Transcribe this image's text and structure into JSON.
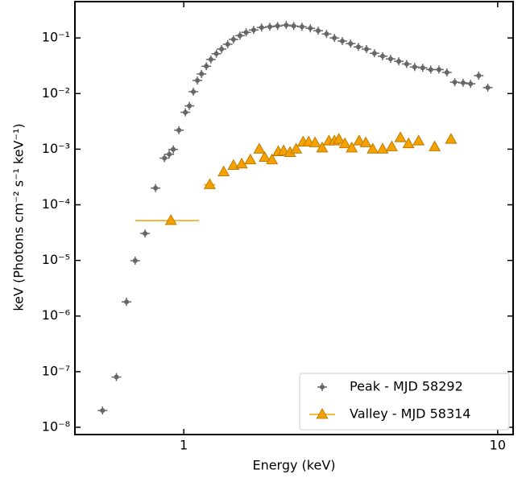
{
  "chart_data": {
    "type": "scatter",
    "xlabel": "Energy (keV)",
    "ylabel": "keV (Photons cm⁻² s⁻¹ keV⁻¹)",
    "log_x": true,
    "log_y": true,
    "xlim": [
      0.45,
      11.2
    ],
    "ylim": [
      7.4e-09,
      0.45
    ],
    "xticks": [
      1,
      10
    ],
    "yticks": [
      {
        "value": 1e-08,
        "label": "10⁻⁸"
      },
      {
        "value": 1e-07,
        "label": "10⁻⁷"
      },
      {
        "value": 1e-06,
        "label": "10⁻⁶"
      },
      {
        "value": 1e-05,
        "label": "10⁻⁵"
      },
      {
        "value": 0.0001,
        "label": "10⁻⁴"
      },
      {
        "value": 0.001,
        "label": "10⁻³"
      },
      {
        "value": 0.01,
        "label": "10⁻²"
      },
      {
        "value": 0.1,
        "label": "10⁻¹"
      }
    ],
    "legend": "lower right",
    "series": [
      {
        "name": "Peak - MJD 58292",
        "color": "#666666",
        "marker": "cross",
        "x": [
          0.551,
          0.61,
          0.657,
          0.7,
          0.753,
          0.813,
          0.868,
          0.899,
          0.926,
          0.965,
          1.012,
          1.042,
          1.073,
          1.105,
          1.139,
          1.18,
          1.22,
          1.27,
          1.32,
          1.38,
          1.44,
          1.51,
          1.58,
          1.67,
          1.77,
          1.88,
          1.99,
          2.12,
          2.24,
          2.38,
          2.53,
          2.68,
          2.85,
          3.02,
          3.2,
          3.4,
          3.6,
          3.82,
          4.05,
          4.3,
          4.56,
          4.84,
          5.13,
          5.44,
          5.77,
          6.12,
          6.5,
          6.89,
          7.3,
          7.76,
          8.2,
          8.7,
          9.3
        ],
        "values": [
          2e-08,
          8e-08,
          1.8e-06,
          9.9e-06,
          3.05e-05,
          0.0002,
          0.00069,
          0.00081,
          0.00099,
          0.0022,
          0.0046,
          0.006,
          0.0108,
          0.0172,
          0.0225,
          0.031,
          0.041,
          0.052,
          0.063,
          0.077,
          0.094,
          0.11,
          0.126,
          0.139,
          0.154,
          0.159,
          0.164,
          0.17,
          0.164,
          0.159,
          0.149,
          0.135,
          0.118,
          0.1,
          0.088,
          0.079,
          0.069,
          0.063,
          0.053,
          0.047,
          0.042,
          0.038,
          0.034,
          0.03,
          0.029,
          0.027,
          0.027,
          0.024,
          0.016,
          0.0156,
          0.015,
          0.021,
          0.0128
        ]
      },
      {
        "name": "Valley - MJD 58314",
        "color": "#f5a200",
        "marker": "triangle",
        "x": [
          0.91,
          1.21,
          1.34,
          1.44,
          1.53,
          1.63,
          1.74,
          1.81,
          1.91,
          2.0,
          2.08,
          2.18,
          2.28,
          2.4,
          2.5,
          2.62,
          2.76,
          2.9,
          3.02,
          3.12,
          3.26,
          3.43,
          3.62,
          3.8,
          4.0,
          4.3,
          4.6,
          4.9,
          5.2,
          5.6,
          6.3,
          7.1
        ],
        "xerr": [
          0.21,
          0.05,
          0.03,
          0.03,
          0.03,
          0.03,
          0.03,
          0.03,
          0.03,
          0.03,
          0.03,
          0.03,
          0.03,
          0.04,
          0.04,
          0.04,
          0.04,
          0.04,
          0.04,
          0.04,
          0.05,
          0.05,
          0.05,
          0.05,
          0.06,
          0.06,
          0.07,
          0.07,
          0.08,
          0.1,
          0.15,
          0.2
        ],
        "values": [
          5.2e-05,
          0.00023,
          0.00039,
          0.00051,
          0.00054,
          0.00064,
          0.001,
          0.00071,
          0.00064,
          0.0009,
          0.00093,
          0.00087,
          0.001,
          0.00134,
          0.00134,
          0.0013,
          0.00105,
          0.0014,
          0.0014,
          0.0015,
          0.00125,
          0.00105,
          0.0014,
          0.0013,
          0.001,
          0.001,
          0.0011,
          0.0016,
          0.00125,
          0.0014,
          0.0011,
          0.0015
        ]
      }
    ]
  }
}
